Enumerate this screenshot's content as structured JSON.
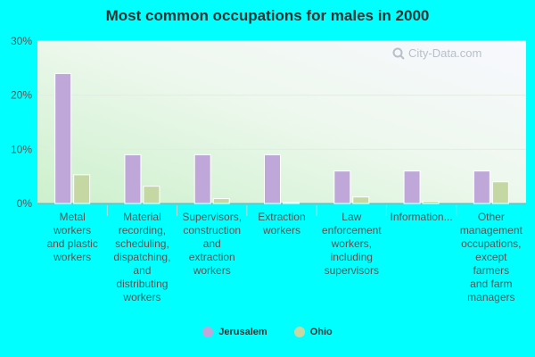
{
  "watermark": "City-Data.com",
  "chart_data": {
    "type": "bar",
    "title": "Most common occupations for males in 2000",
    "categories": [
      "Metal workers and plastic workers",
      "Material recording, scheduling, dispatching, and distributing workers",
      "Supervisors, construction and extraction workers",
      "Extraction workers",
      "Law enforcement workers, including supervisors",
      "Information...",
      "Other management occupations, except farmers and farm managers"
    ],
    "category_lines": [
      [
        "Metal",
        "workers",
        "and plastic",
        "workers"
      ],
      [
        "Material",
        "recording,",
        "scheduling,",
        "dispatching,",
        "and",
        "distributing",
        "workers"
      ],
      [
        "Supervisors,",
        "construction",
        "and",
        "extraction",
        "workers"
      ],
      [
        "Extraction",
        "workers"
      ],
      [
        "Law",
        "enforcement",
        "workers,",
        "including",
        "supervisors"
      ],
      [
        "Information..."
      ],
      [
        "Other",
        "management",
        "occupations,",
        "except",
        "farmers",
        "and farm",
        "managers"
      ]
    ],
    "series": [
      {
        "name": "Jerusalem",
        "color": "#bfa8d9",
        "values": [
          24.0,
          9.0,
          9.0,
          9.0,
          6.0,
          6.0,
          6.0
        ]
      },
      {
        "name": "Ohio",
        "color": "#c5d8a4",
        "values": [
          5.3,
          3.2,
          0.9,
          0.2,
          1.2,
          0.4,
          4.0
        ]
      }
    ],
    "ylim": [
      0,
      30
    ],
    "yticks": [
      0,
      10,
      20,
      30
    ],
    "ytick_labels": [
      "0%",
      "10%",
      "20%",
      "30%"
    ],
    "grid": true,
    "legend_position": "bottom-center"
  }
}
